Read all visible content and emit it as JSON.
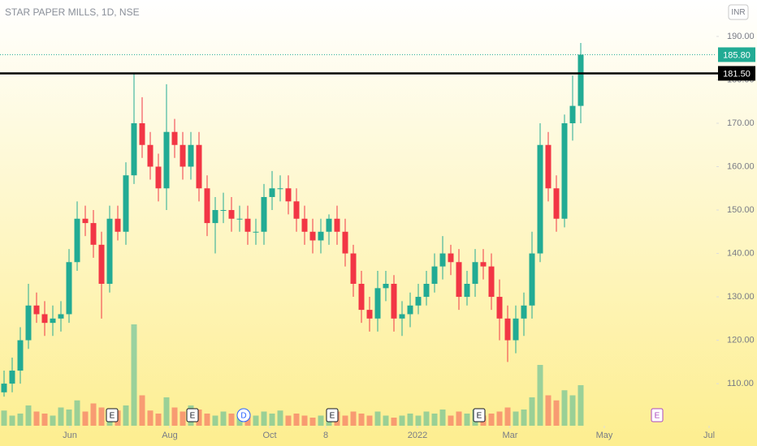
{
  "header": {
    "title": "STAR PAPER MILLS, 1D, NSE",
    "currency": "INR"
  },
  "chart_data": {
    "type": "candlestick",
    "open": [
      108,
      110,
      113,
      120,
      128,
      126,
      124,
      125,
      126,
      138,
      148,
      147,
      142,
      133,
      148,
      145,
      158,
      170,
      165,
      160,
      155,
      168,
      165,
      160,
      165,
      155,
      147,
      150,
      150,
      148,
      148,
      145,
      145,
      153,
      155,
      155,
      152,
      148,
      145,
      143,
      145,
      148,
      145,
      140,
      133,
      127,
      125,
      132,
      133,
      125,
      126,
      128,
      130,
      133,
      137,
      140,
      138,
      130,
      133,
      138,
      137,
      130,
      125,
      120,
      125,
      128,
      140,
      165,
      155,
      148,
      170,
      174
    ],
    "high": [
      113,
      116,
      123,
      133,
      131,
      129,
      128,
      129,
      141,
      152,
      151,
      150,
      145,
      151,
      151,
      161,
      181.5,
      176,
      168,
      163,
      179,
      171,
      168,
      168,
      168,
      158,
      153,
      154,
      153,
      151,
      151,
      148,
      156,
      159,
      158,
      158,
      155,
      151,
      148,
      148,
      149,
      151,
      148,
      142,
      136,
      130,
      136,
      136,
      135,
      129,
      131,
      133,
      136,
      140,
      144,
      142,
      141,
      136,
      141,
      141,
      140,
      134,
      128,
      128,
      131,
      145,
      170,
      168,
      158,
      172,
      181,
      188.5
    ],
    "low": [
      107,
      108,
      110,
      118,
      124,
      121,
      121,
      122,
      124,
      136,
      144,
      139,
      125,
      131,
      143,
      142,
      156,
      162,
      157,
      152,
      150,
      162,
      157,
      157,
      152,
      144,
      140,
      147,
      145,
      145,
      142,
      142,
      142,
      150,
      152,
      149,
      145,
      142,
      140,
      140,
      142,
      142,
      137,
      130,
      124,
      122,
      122,
      129,
      122,
      121,
      123,
      126,
      128,
      131,
      134,
      135,
      127,
      128,
      130,
      134,
      127,
      120,
      115,
      117,
      121,
      125,
      138,
      152,
      145,
      146,
      166,
      170
    ],
    "close": [
      110,
      113,
      120,
      128,
      126,
      124,
      125,
      126,
      138,
      148,
      147,
      142,
      133,
      148,
      145,
      158,
      170,
      165,
      160,
      155,
      168,
      165,
      160,
      165,
      155,
      147,
      150,
      150,
      148,
      148,
      145,
      145,
      153,
      155,
      155,
      152,
      148,
      145,
      143,
      145,
      148,
      145,
      140,
      133,
      127,
      125,
      132,
      133,
      125,
      126,
      128,
      130,
      133,
      137,
      140,
      138,
      130,
      133,
      138,
      137,
      130,
      125,
      120,
      125,
      128,
      140,
      165,
      155,
      148,
      170,
      174,
      185.8
    ],
    "volume": [
      15,
      10,
      12,
      20,
      14,
      12,
      10,
      18,
      16,
      25,
      14,
      22,
      18,
      12,
      15,
      20,
      100,
      30,
      15,
      12,
      28,
      18,
      14,
      20,
      16,
      12,
      10,
      14,
      12,
      10,
      12,
      10,
      14,
      12,
      15,
      10,
      12,
      10,
      8,
      10,
      12,
      14,
      10,
      14,
      12,
      10,
      14,
      10,
      8,
      10,
      12,
      10,
      14,
      12,
      16,
      10,
      14,
      12,
      16,
      10,
      12,
      14,
      18,
      14,
      16,
      28,
      60,
      30,
      25,
      35,
      30,
      40
    ],
    "up_color": "#22ab94",
    "down_color": "#f23645",
    "xlim": [
      -0.5,
      87.7
    ],
    "ylim": [
      100.3,
      198.4
    ],
    "vlim": [
      0,
      100
    ],
    "xticks": [
      {
        "value": 8.1,
        "label": "Jun"
      },
      {
        "value": 20.4,
        "label": "Aug"
      },
      {
        "value": 32.7,
        "label": "Oct"
      },
      {
        "value": 39.6,
        "label": "8"
      },
      {
        "value": 50.9,
        "label": "2022"
      },
      {
        "value": 62.3,
        "label": "Mar"
      },
      {
        "value": 73.9,
        "label": "May"
      },
      {
        "value": 86.8,
        "label": "Jul"
      }
    ],
    "yticks": [
      {
        "value": 110,
        "label": "110.00"
      },
      {
        "value": 120,
        "label": "120.00"
      },
      {
        "value": 130,
        "label": "130.00"
      },
      {
        "value": 140,
        "label": "140.00"
      },
      {
        "value": 150,
        "label": "150.00"
      },
      {
        "value": 160,
        "label": "160.00"
      },
      {
        "value": 170,
        "label": "170.00"
      },
      {
        "value": 180,
        "label": "180.00"
      },
      {
        "value": 190,
        "label": "190.00"
      }
    ],
    "last_price": {
      "value": 185.8,
      "label": "185.80",
      "color": "#22ab94"
    },
    "horizontal_line": {
      "value": 181.5,
      "label": "181.50",
      "color": "#000000"
    },
    "events": [
      {
        "label": "E",
        "x": 13.3,
        "color": "#131722"
      },
      {
        "label": "E",
        "x": 23.2,
        "color": "#131722"
      },
      {
        "label": "D",
        "x": 29.5,
        "color": "#2962ff"
      },
      {
        "label": "E",
        "x": 40.4,
        "color": "#131722"
      },
      {
        "label": "E",
        "x": 58.5,
        "color": "#131722"
      },
      {
        "label": "E",
        "x": 80.4,
        "color": "#ab47bc"
      }
    ]
  }
}
